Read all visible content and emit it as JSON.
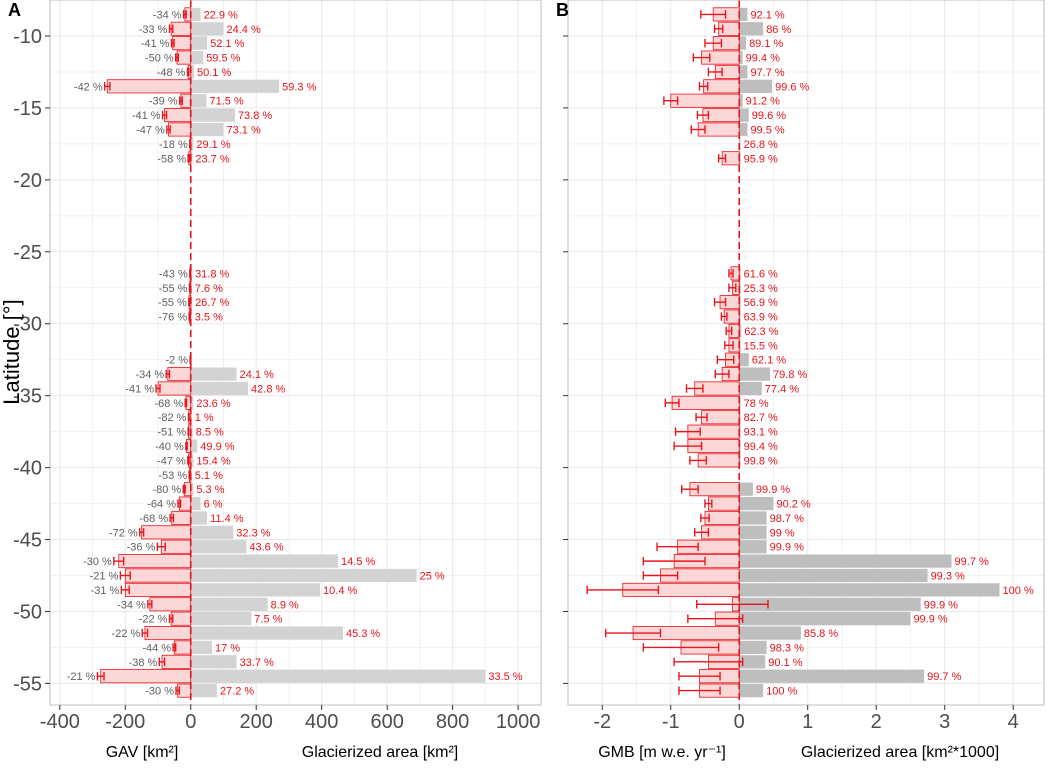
{
  "colors": {
    "grey_bar": "#d3d3d3",
    "grey_bar_dark": "#bebebe",
    "red": "#e8141c",
    "pink": "#fbd0d1",
    "grid": "#e8e8e8",
    "grey_text": "#606060"
  },
  "y_axis_label": "Latitude [°]",
  "panels": [
    {
      "tag": "A"
    },
    {
      "tag": "B"
    }
  ],
  "chart_data": [
    {
      "panel": "A",
      "type": "bar",
      "orientation": "horizontal",
      "xlabel_left": "GAV [km²]",
      "xlabel_right": "Glacierized area [km²]",
      "ylabel": "Latitude [°]",
      "xlim": [
        -430,
        1070
      ],
      "ylim": [
        -56.5,
        -7.5
      ],
      "xticks": [
        -400,
        -200,
        0,
        200,
        400,
        600,
        800,
        1000
      ],
      "xtick_labels": [
        "-400",
        "-200",
        "0",
        "200",
        "400",
        "600",
        "800",
        "1000"
      ],
      "yticks": [
        -10,
        -15,
        -20,
        -25,
        -30,
        -35,
        -40,
        -45,
        -50,
        -55
      ],
      "ytick_labels": [
        "-10",
        "-15",
        "-20",
        "-25",
        "-30",
        "-35",
        "-40",
        "-45",
        "-50",
        "-55"
      ],
      "rows": [
        {
          "lat": -8.5,
          "area": 30,
          "gav": -18,
          "err": 4,
          "grey_label": "-34 %",
          "red_label": "22.9 %"
        },
        {
          "lat": -9.5,
          "area": 100,
          "gav": -60,
          "err": 5,
          "grey_label": "-33 %",
          "red_label": "24.4 %"
        },
        {
          "lat": -10.5,
          "area": 50,
          "gav": -55,
          "err": 4,
          "grey_label": "-41 %",
          "red_label": "52.1 %"
        },
        {
          "lat": -11.5,
          "area": 38,
          "gav": -42,
          "err": 4,
          "grey_label": "-50 %",
          "red_label": "59.5 %"
        },
        {
          "lat": -12.5,
          "area": 10,
          "gav": -8,
          "err": 2,
          "grey_label": "-48 %",
          "red_label": "50.1 %"
        },
        {
          "lat": -13.5,
          "area": 270,
          "gav": -255,
          "err": 8,
          "grey_label": "-42 %",
          "red_label": "59.3 %"
        },
        {
          "lat": -14.5,
          "area": 48,
          "gav": -30,
          "err": 4,
          "grey_label": "-39 %",
          "red_label": "71.5 %"
        },
        {
          "lat": -15.5,
          "area": 135,
          "gav": -80,
          "err": 6,
          "grey_label": "-41 %",
          "red_label": "73.8 %"
        },
        {
          "lat": -16.5,
          "area": 100,
          "gav": -68,
          "err": 5,
          "grey_label": "-47 %",
          "red_label": "73.1 %"
        },
        {
          "lat": -17.5,
          "area": 8,
          "gav": -2,
          "err": 1,
          "grey_label": "-18 %",
          "red_label": "29.1 %"
        },
        {
          "lat": -18.5,
          "area": 5,
          "gav": -6,
          "err": 2,
          "grey_label": "-58 %",
          "red_label": "23.7 %"
        },
        {
          "lat": -26.5,
          "area": 4,
          "gav": -2,
          "err": 1,
          "grey_label": "-43 %",
          "red_label": "31.8 %"
        },
        {
          "lat": -27.5,
          "area": 3,
          "gav": -3,
          "err": 1,
          "grey_label": "-55 %",
          "red_label": "7.6 %"
        },
        {
          "lat": -28.5,
          "area": 4,
          "gav": -5,
          "err": 1,
          "grey_label": "-55 %",
          "red_label": "26.7 %"
        },
        {
          "lat": -29.5,
          "area": 2,
          "gav": -4,
          "err": 1,
          "grey_label": "-76 %",
          "red_label": "3.5 %"
        },
        {
          "lat": -32.5,
          "area": 3,
          "gav": -1,
          "err": 1,
          "grey_label": "-2 %",
          "red_label": ""
        },
        {
          "lat": -33.5,
          "area": 140,
          "gav": -70,
          "err": 5,
          "grey_label": "-34 %",
          "red_label": "24.1 %"
        },
        {
          "lat": -34.5,
          "area": 175,
          "gav": -100,
          "err": 6,
          "grey_label": "-41 %",
          "red_label": "42.8 %"
        },
        {
          "lat": -35.5,
          "area": 8,
          "gav": -15,
          "err": 2,
          "grey_label": "-68 %",
          "red_label": "23.6 %"
        },
        {
          "lat": -36.5,
          "area": 2,
          "gav": -6,
          "err": 1,
          "grey_label": "-82 %",
          "red_label": "1 %"
        },
        {
          "lat": -37.5,
          "area": 6,
          "gav": -7,
          "err": 1,
          "grey_label": "-51 %",
          "red_label": "8.5 %"
        },
        {
          "lat": -38.5,
          "area": 20,
          "gav": -13,
          "err": 2,
          "grey_label": "-40 %",
          "red_label": "49.9 %"
        },
        {
          "lat": -39.5,
          "area": 8,
          "gav": -7,
          "err": 2,
          "grey_label": "-47 %",
          "red_label": "15.4 %"
        },
        {
          "lat": -40.5,
          "area": 3,
          "gav": -4,
          "err": 1,
          "grey_label": "-53 %",
          "red_label": "5.1 %"
        },
        {
          "lat": -41.5,
          "area": 8,
          "gav": -20,
          "err": 3,
          "grey_label": "-80 %",
          "red_label": "5.3 %"
        },
        {
          "lat": -42.5,
          "area": 30,
          "gav": -35,
          "err": 4,
          "grey_label": "-64 %",
          "red_label": "6 %"
        },
        {
          "lat": -43.5,
          "area": 50,
          "gav": -58,
          "err": 5,
          "grey_label": "-68 %",
          "red_label": "11.4 %"
        },
        {
          "lat": -44.5,
          "area": 130,
          "gav": -150,
          "err": 6,
          "grey_label": "-72 %",
          "red_label": "32.3 %"
        },
        {
          "lat": -45.5,
          "area": 170,
          "gav": -90,
          "err": 12,
          "grey_label": "-36 %",
          "red_label": "43.6 %"
        },
        {
          "lat": -46.5,
          "area": 450,
          "gav": -220,
          "err": 15,
          "grey_label": "-30 %",
          "red_label": "14.5 %"
        },
        {
          "lat": -47.5,
          "area": 690,
          "gav": -200,
          "err": 15,
          "grey_label": "-21 %",
          "red_label": "25 %"
        },
        {
          "lat": -48.5,
          "area": 395,
          "gav": -200,
          "err": 12,
          "grey_label": "-31 %",
          "red_label": "10.4 %"
        },
        {
          "lat": -49.5,
          "area": 235,
          "gav": -125,
          "err": 6,
          "grey_label": "-34 %",
          "red_label": "8.9 %"
        },
        {
          "lat": -50.5,
          "area": 185,
          "gav": -60,
          "err": 5,
          "grey_label": "-22 %",
          "red_label": "7.5 %"
        },
        {
          "lat": -51.5,
          "area": 465,
          "gav": -140,
          "err": 8,
          "grey_label": "-22 %",
          "red_label": "45.3 %"
        },
        {
          "lat": -52.5,
          "area": 65,
          "gav": -50,
          "err": 4,
          "grey_label": "-44 %",
          "red_label": "17 %"
        },
        {
          "lat": -53.5,
          "area": 140,
          "gav": -88,
          "err": 8,
          "grey_label": "-38 %",
          "red_label": "33.7 %"
        },
        {
          "lat": -54.5,
          "area": 900,
          "gav": -275,
          "err": 10,
          "grey_label": "-21 %",
          "red_label": "33.5 %"
        },
        {
          "lat": -55.5,
          "area": 80,
          "gav": -40,
          "err": 5,
          "grey_label": "-30 %",
          "red_label": "27.2 %"
        }
      ]
    },
    {
      "panel": "B",
      "type": "bar",
      "orientation": "horizontal",
      "xlabel_left": "GMB [m w.e. yr⁻¹]",
      "xlabel_right": "Glacierized area [km²*1000]",
      "ylabel": "Latitude [°]",
      "xlim": [
        -2.5,
        4.45
      ],
      "ylim": [
        -56.5,
        -7.5
      ],
      "xticks": [
        -2,
        -1,
        0,
        1,
        2,
        3,
        4
      ],
      "xtick_labels": [
        "-2",
        "-1",
        "0",
        "1",
        "2",
        "3",
        "4"
      ],
      "rows": [
        {
          "lat": -8.5,
          "area": 0.12,
          "gmb": -0.38,
          "err": 0.18,
          "red_label": "92.1 %"
        },
        {
          "lat": -9.5,
          "area": 0.35,
          "gmb": -0.3,
          "err": 0.06,
          "red_label": "86 %"
        },
        {
          "lat": -10.5,
          "area": 0.1,
          "gmb": -0.38,
          "err": 0.12,
          "red_label": "89.1 %"
        },
        {
          "lat": -11.5,
          "area": 0.05,
          "gmb": -0.55,
          "err": 0.12,
          "red_label": "99.4 %"
        },
        {
          "lat": -12.5,
          "area": 0.12,
          "gmb": -0.35,
          "err": 0.1,
          "red_label": "97.7 %"
        },
        {
          "lat": -13.5,
          "area": 0.48,
          "gmb": -0.52,
          "err": 0.06,
          "red_label": "99.6 %"
        },
        {
          "lat": -14.5,
          "area": 0.05,
          "gmb": -1.0,
          "err": 0.1,
          "red_label": "91.2 %"
        },
        {
          "lat": -15.5,
          "area": 0.14,
          "gmb": -0.53,
          "err": 0.08,
          "red_label": "99.6 %"
        },
        {
          "lat": -16.5,
          "area": 0.12,
          "gmb": -0.6,
          "err": 0.1,
          "red_label": "99.5 %"
        },
        {
          "lat": -17.5,
          "area": 0.02,
          "gmb": 0,
          "err": 0,
          "red_label": "26.8 %"
        },
        {
          "lat": -18.5,
          "area": 0.02,
          "gmb": -0.25,
          "err": 0.05,
          "red_label": "95.9 %"
        },
        {
          "lat": -26.5,
          "area": 0.02,
          "gmb": -0.12,
          "err": 0.03,
          "red_label": "61.6 %"
        },
        {
          "lat": -27.5,
          "area": 0.02,
          "gmb": -0.1,
          "err": 0.05,
          "red_label": "25.3 %"
        },
        {
          "lat": -28.5,
          "area": 0.02,
          "gmb": -0.28,
          "err": 0.08,
          "red_label": "56.9 %"
        },
        {
          "lat": -29.5,
          "area": 0.02,
          "gmb": -0.22,
          "err": 0.04,
          "red_label": "63.9 %"
        },
        {
          "lat": -30.5,
          "area": 0.03,
          "gmb": -0.15,
          "err": 0.04,
          "red_label": "62.3 %"
        },
        {
          "lat": -31.5,
          "area": 0.02,
          "gmb": -0.15,
          "err": 0.06,
          "red_label": "15.5 %"
        },
        {
          "lat": -32.5,
          "area": 0.14,
          "gmb": -0.2,
          "err": 0.12,
          "red_label": "62.1 %"
        },
        {
          "lat": -33.5,
          "area": 0.45,
          "gmb": -0.25,
          "err": 0.1,
          "red_label": "79.8 %"
        },
        {
          "lat": -34.5,
          "area": 0.33,
          "gmb": -0.65,
          "err": 0.12,
          "red_label": "77.4 %"
        },
        {
          "lat": -35.5,
          "area": 0.02,
          "gmb": -0.98,
          "err": 0.1,
          "red_label": "78 %"
        },
        {
          "lat": -36.5,
          "area": 0.02,
          "gmb": -0.55,
          "err": 0.08,
          "red_label": "82.7 %"
        },
        {
          "lat": -37.5,
          "area": 0.02,
          "gmb": -0.75,
          "err": 0.18,
          "red_label": "93.1 %"
        },
        {
          "lat": -38.5,
          "area": 0.02,
          "gmb": -0.75,
          "err": 0.2,
          "red_label": "99.4 %"
        },
        {
          "lat": -39.5,
          "area": 0.02,
          "gmb": -0.6,
          "err": 0.12,
          "red_label": "99.8 %"
        },
        {
          "lat": -41.5,
          "area": 0.2,
          "gmb": -0.72,
          "err": 0.12,
          "red_label": "99.9 %"
        },
        {
          "lat": -42.5,
          "area": 0.5,
          "gmb": -0.45,
          "err": 0.05,
          "red_label": "90.2 %"
        },
        {
          "lat": -43.5,
          "area": 0.4,
          "gmb": -0.5,
          "err": 0.06,
          "red_label": "98.7 %"
        },
        {
          "lat": -44.5,
          "area": 0.4,
          "gmb": -0.55,
          "err": 0.1,
          "red_label": "99 %"
        },
        {
          "lat": -45.5,
          "area": 0.4,
          "gmb": -0.9,
          "err": 0.3,
          "red_label": "99.9 %"
        },
        {
          "lat": -46.5,
          "area": 3.1,
          "gmb": -0.95,
          "err": 0.45,
          "red_label": "99.7 %"
        },
        {
          "lat": -47.5,
          "area": 2.75,
          "gmb": -1.15,
          "err": 0.25,
          "red_label": "99.3 %"
        },
        {
          "lat": -48.5,
          "area": 3.8,
          "gmb": -1.7,
          "err": 0.52,
          "red_label": "100 %"
        },
        {
          "lat": -49.5,
          "area": 2.65,
          "gmb": -0.1,
          "err": 0.52,
          "red_label": "99.9 %"
        },
        {
          "lat": -50.5,
          "area": 2.5,
          "gmb": -0.35,
          "err": 0.4,
          "red_label": "99.9 %"
        },
        {
          "lat": -51.5,
          "area": 0.9,
          "gmb": -1.55,
          "err": 0.4,
          "red_label": "85.8 %"
        },
        {
          "lat": -52.5,
          "area": 0.4,
          "gmb": -0.85,
          "err": 0.55,
          "red_label": "98.3 %"
        },
        {
          "lat": -53.5,
          "area": 0.38,
          "gmb": -0.45,
          "err": 0.5,
          "red_label": "90.1 %"
        },
        {
          "lat": -54.5,
          "area": 2.7,
          "gmb": -0.58,
          "err": 0.3,
          "red_label": "99.7 %"
        },
        {
          "lat": -55.5,
          "area": 0.35,
          "gmb": -0.58,
          "err": 0.3,
          "red_label": "100 %"
        }
      ]
    }
  ]
}
